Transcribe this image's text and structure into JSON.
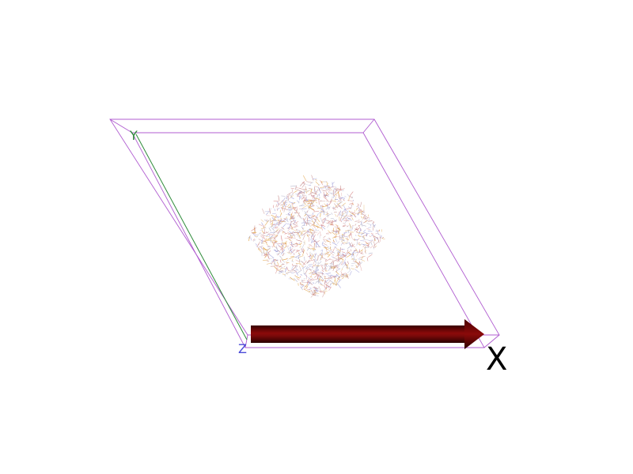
{
  "scene": {
    "background": "#ffffff",
    "cell_color": "#b05cd0",
    "axes": {
      "x": {
        "label": "X",
        "color": "#000000",
        "arrow_color": "#7a0a0a"
      },
      "y": {
        "label": "Y",
        "color": "#2e8b3a"
      },
      "z": {
        "label": "Z",
        "color": "#4a4ad8"
      }
    },
    "molecule": {
      "style": "wireframe",
      "colors": [
        "#9a9ad8",
        "#d88a8a",
        "#e0a040",
        "#b0b0c8",
        "#c08080"
      ]
    }
  }
}
